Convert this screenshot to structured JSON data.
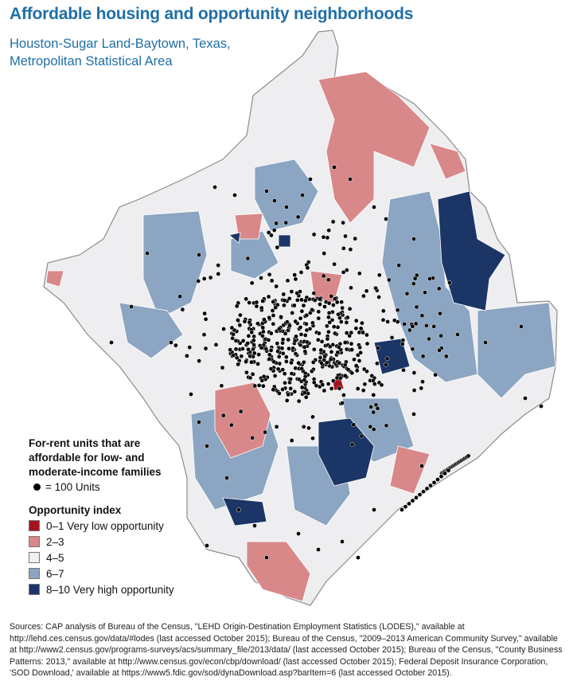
{
  "title": "Affordable housing and opportunity neighborhoods",
  "subtitle_line1": "Houston-Sugar Land-Baytown, Texas,",
  "subtitle_line2": "Metropolitan Statistical Area",
  "legend": {
    "units_line1": "For-rent units that are",
    "units_line2": "affordable for low- and",
    "units_line3": "moderate-income families",
    "dot_label": "= 100 Units",
    "opportunity_heading": "Opportunity index",
    "classes": [
      {
        "label": "0–1 Very low opportunity",
        "color": "#a3141f"
      },
      {
        "label": "2–3",
        "color": "#d9888a"
      },
      {
        "label": "4–5",
        "color": "#f1f1f2"
      },
      {
        "label": "6–7",
        "color": "#8ba5c2"
      },
      {
        "label": "8–10 Very high opportunity",
        "color": "#1b3566"
      }
    ]
  },
  "sources": "Sources: CAP analysis of Bureau of the Census, \"LEHD Origin-Destination Employment Statistics (LODES),\" available at http://lehd.ces.census.gov/data/#lodes (last accessed October 2015); Bureau of the Census, \"2009–2013 American Community Survey,\" available at http://www2.census.gov/programs-surveys/acs/summary_file/2013/data/ (last accessed October 2015); Bureau of the Census, \"County Business Patterns: 2013,\" available at http://www.census.gov/econ/cbp/download/ (last accessed October 2015); Federal Deposit Insurance Corporation, 'SOD Download,' available at https://www5.fdic.gov/sod/dynaDownload.asp?barItem=6 (last accessed October 2015)."
}
